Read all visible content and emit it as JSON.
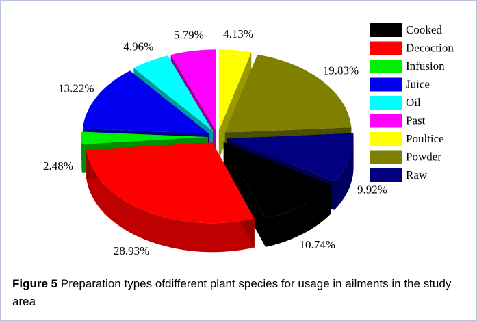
{
  "chart_data": {
    "type": "pie3d",
    "categories": [
      "Cooked",
      "Decoction",
      "Infusion",
      "Juice",
      "Oil",
      "Past",
      "Poultice",
      "Powder",
      "Raw"
    ],
    "values": [
      10.74,
      28.93,
      2.48,
      13.22,
      4.96,
      5.79,
      4.13,
      19.83,
      9.92
    ],
    "value_labels": [
      "10.74%",
      "28.93%",
      "2.48%",
      "13.22%",
      "4.96%",
      "5.79%",
      "4.13%",
      "19.83%",
      "9.92%"
    ],
    "colors": [
      "#000000",
      "#ff0000",
      "#00ee00",
      "#0000ee",
      "#00ffff",
      "#ff00ff",
      "#ffff00",
      "#808000",
      "#000080"
    ],
    "legend": "right"
  },
  "caption": {
    "label": "Figure 5",
    "text": "Preparation types ofdifferent plant species for usage in ailments in the study area"
  }
}
